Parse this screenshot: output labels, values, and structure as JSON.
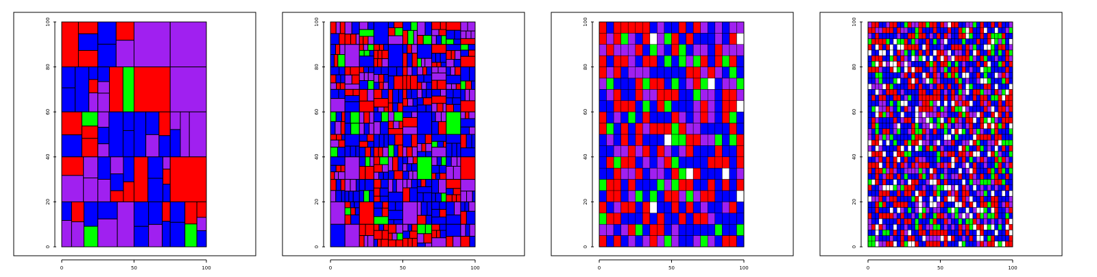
{
  "colors": {
    "blue": "#0000ff",
    "red": "#ff0000",
    "purple": "#a020f0",
    "green": "#00ff00",
    "white": "#ffffff",
    "border": "#000000"
  },
  "chart_data": [
    {
      "type": "heatmap",
      "title": "",
      "xlabel": "",
      "ylabel": "",
      "xlim": [
        0,
        100
      ],
      "ylim": [
        0,
        100
      ],
      "xticks": [
        "0",
        "50",
        "100"
      ],
      "yticks": [
        "0",
        "20",
        "40",
        "60",
        "80",
        "100"
      ],
      "grid_level": 1,
      "cell_palette": [
        "red",
        "purple",
        "blue",
        "green"
      ],
      "cell_weights": [
        0.3,
        0.3,
        0.36,
        0.04
      ],
      "cell_seed": 11
    },
    {
      "type": "heatmap",
      "title": "",
      "xlabel": "",
      "ylabel": "",
      "xlim": [
        0,
        100
      ],
      "ylim": [
        0,
        100
      ],
      "xticks": [
        "0",
        "50",
        "100"
      ],
      "yticks": [
        "0",
        "20",
        "40",
        "60",
        "80",
        "100"
      ],
      "grid_level": 2,
      "cell_palette": [
        "red",
        "purple",
        "blue",
        "green"
      ],
      "cell_weights": [
        0.32,
        0.25,
        0.36,
        0.07
      ],
      "cell_seed": 23
    },
    {
      "type": "heatmap",
      "title": "",
      "xlabel": "",
      "ylabel": "",
      "xlim": [
        0,
        100
      ],
      "ylim": [
        0,
        100
      ],
      "xticks": [
        "0",
        "50",
        "100"
      ],
      "yticks": [
        "0",
        "20",
        "40",
        "60",
        "80",
        "100"
      ],
      "grid_level": 3,
      "cell_palette": [
        "red",
        "purple",
        "blue",
        "green",
        "white"
      ],
      "cell_weights": [
        0.3,
        0.2,
        0.38,
        0.1,
        0.02
      ],
      "cell_seed": 37
    },
    {
      "type": "heatmap",
      "title": "",
      "xlabel": "",
      "ylabel": "",
      "xlim": [
        0,
        100
      ],
      "ylim": [
        0,
        100
      ],
      "xticks": [
        "0",
        "50",
        "100"
      ],
      "yticks": [
        "0",
        "20",
        "40",
        "60",
        "80",
        "100"
      ],
      "grid_level": 4,
      "cell_palette": [
        "red",
        "purple",
        "blue",
        "green",
        "white"
      ],
      "cell_weights": [
        0.25,
        0.14,
        0.38,
        0.11,
        0.12
      ],
      "cell_seed": 53
    }
  ]
}
